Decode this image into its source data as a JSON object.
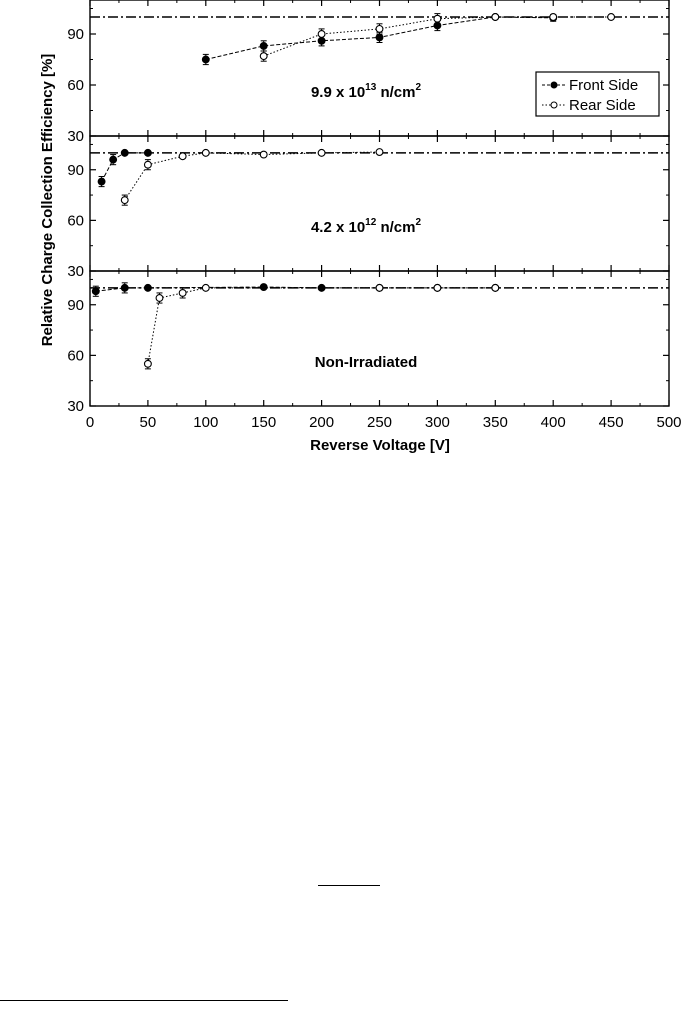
{
  "figure": {
    "ylabel": "Relative Charge Collection Efficiency  [%]",
    "xlabel": "Reverse Voltage   [V]",
    "xticks": [
      0,
      50,
      100,
      150,
      200,
      250,
      300,
      350,
      400,
      450,
      500
    ],
    "yticks": [
      30,
      60,
      90
    ],
    "legend": {
      "front": "Front Side",
      "rear": "Rear Side",
      "placement": "right, top panel"
    }
  },
  "chart_data": [
    {
      "type": "scatter",
      "panel": "top",
      "annotation": {
        "base": "9.9 x 10",
        "exp": "13",
        "unit": " n/cm",
        "unit_exp": "2"
      },
      "xlim": [
        0,
        500
      ],
      "ylim": [
        30,
        110
      ],
      "reference_line": 100,
      "series": [
        {
          "name": "Front Side",
          "marker": "filled",
          "line": "dashed",
          "x": [
            100,
            150,
            200,
            250,
            300,
            350,
            400
          ],
          "y": [
            75,
            83,
            86,
            88,
            95,
            100,
            99.5
          ],
          "err": [
            3,
            3,
            3,
            3,
            3,
            1,
            2
          ]
        },
        {
          "name": "Rear Side",
          "marker": "open",
          "line": "dotted",
          "x": [
            150,
            200,
            250,
            300,
            350,
            400,
            450
          ],
          "y": [
            77,
            90,
            93,
            99,
            100,
            100,
            100
          ],
          "err": [
            3,
            3,
            3,
            3,
            1,
            1,
            1
          ]
        }
      ]
    },
    {
      "type": "scatter",
      "panel": "middle",
      "annotation": {
        "base": "4.2 x 10",
        "exp": "12",
        "unit": " n/cm",
        "unit_exp": "2"
      },
      "xlim": [
        0,
        500
      ],
      "ylim": [
        30,
        110
      ],
      "reference_line": 100,
      "series": [
        {
          "name": "Front Side",
          "marker": "filled",
          "line": "dashed",
          "x": [
            10,
            20,
            30,
            50
          ],
          "y": [
            83,
            96,
            100,
            100
          ],
          "err": [
            3,
            3,
            1,
            1
          ]
        },
        {
          "name": "Rear Side",
          "marker": "open",
          "line": "dotted",
          "x": [
            30,
            50,
            80,
            100,
            150,
            200,
            250
          ],
          "y": [
            72,
            93,
            98,
            100,
            99,
            100,
            100.5
          ],
          "err": [
            3,
            3,
            1,
            1,
            1,
            1,
            1
          ]
        }
      ]
    },
    {
      "type": "scatter",
      "panel": "bottom",
      "annotation": {
        "base": "Non-Irradiated",
        "exp": "",
        "unit": "",
        "unit_exp": ""
      },
      "xlim": [
        0,
        500
      ],
      "ylim": [
        30,
        110
      ],
      "reference_line": 100,
      "series": [
        {
          "name": "Front Side",
          "marker": "filled",
          "line": "dashed",
          "x": [
            5,
            30,
            50,
            150,
            200,
            250,
            300,
            350
          ],
          "y": [
            98,
            100,
            100,
            100.5,
            100,
            100,
            100,
            100
          ],
          "err": [
            3,
            3,
            1,
            1,
            1,
            1,
            1,
            1
          ]
        },
        {
          "name": "Rear Side",
          "marker": "open",
          "line": "dotted",
          "x": [
            50,
            60,
            80,
            100,
            250,
            300,
            350
          ],
          "y": [
            55,
            94,
            97,
            100,
            100,
            100,
            100
          ],
          "err": [
            3,
            3,
            3,
            1,
            1,
            1,
            1
          ]
        }
      ]
    }
  ]
}
